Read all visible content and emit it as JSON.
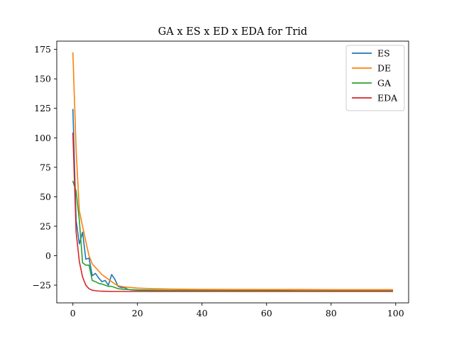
{
  "chart_data": {
    "type": "line",
    "title": "GA x ES x ED x EDA for Trid",
    "xlabel": "",
    "ylabel": "",
    "xlim": [
      -5,
      104
    ],
    "ylim": [
      -40,
      182
    ],
    "xticks": [
      0,
      20,
      40,
      60,
      80,
      100
    ],
    "xtick_labels": [
      "0",
      "20",
      "40",
      "60",
      "80",
      "100"
    ],
    "yticks": [
      -25,
      0,
      25,
      50,
      75,
      100,
      125,
      150,
      175
    ],
    "ytick_labels": [
      "−25",
      "0",
      "25",
      "50",
      "75",
      "100",
      "125",
      "150",
      "175"
    ],
    "grid": false,
    "legend_position": "top-right",
    "series": [
      {
        "name": "ES",
        "color": "#1f77b4",
        "x": [
          0,
          1,
          2,
          3,
          4,
          5,
          6,
          7,
          8,
          9,
          10,
          11,
          12,
          13,
          14,
          15,
          16,
          17,
          18,
          20,
          25,
          30,
          40,
          50,
          60,
          70,
          80,
          90,
          99
        ],
        "y": [
          124,
          30,
          10,
          20,
          -3,
          -2,
          -17,
          -15,
          -19,
          -22,
          -21,
          -25,
          -16,
          -20,
          -26,
          -27,
          -27,
          -28.5,
          -29,
          -29.3,
          -29.6,
          -29.8,
          -29.9,
          -29.9,
          -30,
          -30,
          -30,
          -30,
          -30
        ]
      },
      {
        "name": "DE",
        "color": "#ff7f0e",
        "x": [
          0,
          1,
          2,
          3,
          4,
          5,
          6,
          7,
          8,
          9,
          10,
          11,
          12,
          13,
          14,
          15,
          16,
          18,
          20,
          25,
          30,
          40,
          50,
          60,
          70,
          80,
          90,
          99
        ],
        "y": [
          172,
          90,
          38,
          25,
          12,
          0,
          -7,
          -10,
          -13,
          -16,
          -18,
          -20,
          -22,
          -24,
          -25.5,
          -26,
          -26.5,
          -27,
          -27.5,
          -28,
          -28.3,
          -28.5,
          -28.6,
          -28.7,
          -28.7,
          -28.8,
          -28.8,
          -28.8
        ]
      },
      {
        "name": "GA",
        "color": "#2ca02c",
        "x": [
          0,
          1,
          2,
          3,
          4,
          5,
          6,
          7,
          8,
          9,
          10,
          11,
          12,
          13,
          14,
          15,
          16,
          18,
          20,
          25,
          30,
          40,
          50,
          60,
          70,
          80,
          90,
          99
        ],
        "y": [
          63,
          55,
          30,
          -6,
          -8,
          -8,
          -21,
          -22,
          -23.5,
          -24,
          -25,
          -26,
          -26,
          -27,
          -28,
          -28.3,
          -28.5,
          -28.8,
          -29,
          -29.2,
          -29.4,
          -29.5,
          -29.6,
          -29.6,
          -29.7,
          -29.7,
          -29.7,
          -29.7
        ]
      },
      {
        "name": "EDA",
        "color": "#d62728",
        "x": [
          0,
          1,
          2,
          3,
          4,
          5,
          6,
          7,
          8,
          9,
          10,
          12,
          15,
          20,
          30,
          40,
          50,
          60,
          70,
          80,
          90,
          99
        ],
        "y": [
          104,
          20,
          -5,
          -18,
          -25,
          -28,
          -29.3,
          -29.7,
          -30,
          -30.1,
          -30.2,
          -30.3,
          -30.3,
          -30.3,
          -30.3,
          -30.3,
          -30.3,
          -30.3,
          -30.3,
          -30.3,
          -30.3,
          -30.3
        ]
      }
    ]
  }
}
